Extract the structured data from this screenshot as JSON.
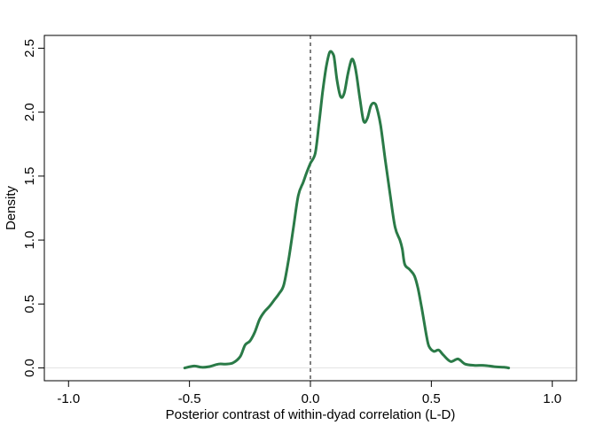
{
  "chart_data": {
    "type": "line",
    "title": "",
    "xlabel": "Posterior contrast of within-dyad correlation (L-D)",
    "ylabel": "Density",
    "xlim": [
      -1.1,
      1.1
    ],
    "ylim": [
      -0.1,
      2.6
    ],
    "x_ticks": [
      -1.0,
      -0.5,
      0.0,
      0.5,
      1.0
    ],
    "x_tick_labels": [
      "-1.0",
      "-0.5",
      "0.0",
      "0.5",
      "1.0"
    ],
    "y_ticks": [
      0.0,
      0.5,
      1.0,
      1.5,
      2.0,
      2.5
    ],
    "y_tick_labels": [
      "0.0",
      "0.5",
      "1.0",
      "1.5",
      "2.0",
      "2.5"
    ],
    "grid": false,
    "baseline": 0.0,
    "reference_line": {
      "x": 0.0,
      "style": "dashed",
      "color": "#000000"
    },
    "series": [
      {
        "color": "#2a7a47",
        "x": [
          -0.52,
          -0.48,
          -0.45,
          -0.42,
          -0.38,
          -0.35,
          -0.32,
          -0.29,
          -0.27,
          -0.25,
          -0.23,
          -0.21,
          -0.19,
          -0.17,
          -0.15,
          -0.13,
          -0.11,
          -0.09,
          -0.07,
          -0.05,
          -0.03,
          -0.015,
          0.0,
          0.02,
          0.035,
          0.05,
          0.065,
          0.08,
          0.095,
          0.1,
          0.11,
          0.125,
          0.14,
          0.155,
          0.17,
          0.18,
          0.19,
          0.205,
          0.22,
          0.235,
          0.25,
          0.265,
          0.275,
          0.29,
          0.31,
          0.33,
          0.35,
          0.37,
          0.38,
          0.39,
          0.41,
          0.43,
          0.445,
          0.46,
          0.47,
          0.48,
          0.49,
          0.51,
          0.53,
          0.55,
          0.58,
          0.61,
          0.64,
          0.68,
          0.72,
          0.76,
          0.8,
          0.82
        ],
        "values": [
          0.0,
          0.015,
          0.005,
          0.01,
          0.03,
          0.03,
          0.04,
          0.09,
          0.18,
          0.21,
          0.28,
          0.38,
          0.44,
          0.48,
          0.53,
          0.58,
          0.65,
          0.85,
          1.1,
          1.35,
          1.45,
          1.53,
          1.6,
          1.68,
          1.9,
          2.15,
          2.35,
          2.47,
          2.45,
          2.4,
          2.25,
          2.12,
          2.15,
          2.3,
          2.41,
          2.39,
          2.3,
          2.1,
          1.93,
          1.95,
          2.05,
          2.07,
          2.03,
          1.9,
          1.62,
          1.35,
          1.1,
          1.0,
          0.93,
          0.81,
          0.77,
          0.72,
          0.62,
          0.47,
          0.36,
          0.25,
          0.17,
          0.13,
          0.14,
          0.1,
          0.05,
          0.07,
          0.03,
          0.02,
          0.02,
          0.01,
          0.005,
          0.0
        ]
      }
    ]
  }
}
